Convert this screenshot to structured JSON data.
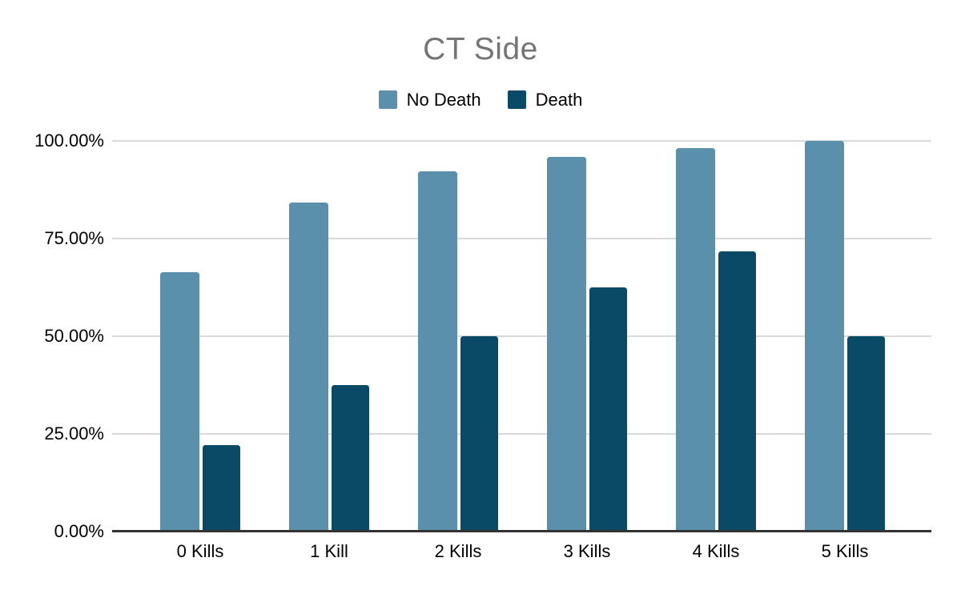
{
  "chart_data": {
    "type": "bar",
    "title": "CT Side",
    "title_color": "#757575",
    "categories": [
      "0 Kills",
      "1 Kill",
      "2 Kills",
      "3 Kills",
      "4 Kills",
      "5 Kills"
    ],
    "series": [
      {
        "name": "No Death",
        "color": "#5a90ac",
        "values": [
          66.4,
          84.2,
          92.3,
          95.8,
          98.2,
          100.0
        ]
      },
      {
        "name": "Death",
        "color": "#0a4a66",
        "values": [
          22.2,
          37.4,
          50.0,
          62.4,
          71.8,
          50.0
        ]
      }
    ],
    "ylim": [
      0,
      100
    ],
    "ytick_labels_top_to_bottom": [
      "100.00%",
      "75.00%",
      "50.00%",
      "25.00%",
      "0.00%"
    ],
    "grid": true,
    "gridline_color": "#d9d9d9",
    "axis_line_color": "#333333",
    "legend_position": "top",
    "value_unit": "percent"
  }
}
